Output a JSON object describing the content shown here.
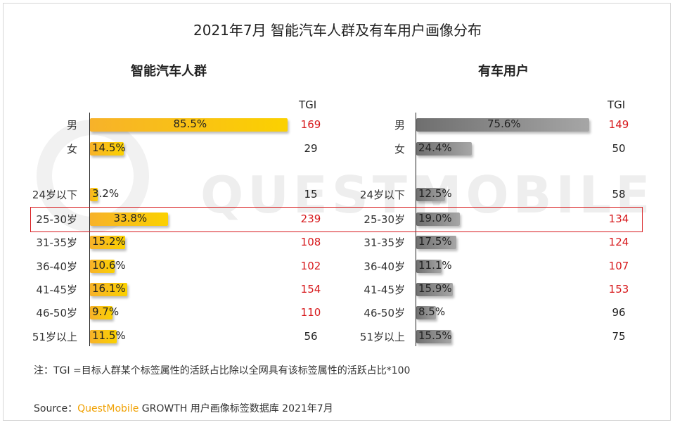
{
  "title": "2021年7月 智能汽车人群及有车用户画像分布",
  "tgi_header": "TGI",
  "note": "注：TGI =目标人群某个标签属性的活跃占比除以全网具有该标签属性的活跃占比*100",
  "source": {
    "prefix": "Source：",
    "brand": "QuestMobile",
    "text": " GROWTH 用户画像标签数据库 2021年7月"
  },
  "watermark": "QUESTMOBILE",
  "colors": {
    "smart_bar": "#f7b22a",
    "car_bar": "#808080",
    "tgi_red": "#d7191c",
    "highlight": "#d7191c"
  },
  "chart_data": [
    {
      "type": "bar",
      "orientation": "horizontal",
      "title": "智能汽车人群",
      "categories": [
        "男",
        "女",
        "24岁以下",
        "25-30岁",
        "31-35岁",
        "36-40岁",
        "41-45岁",
        "46-50岁",
        "51岁以上"
      ],
      "values": [
        85.5,
        14.5,
        3.2,
        33.8,
        15.2,
        10.6,
        16.1,
        9.7,
        11.5
      ],
      "labels": [
        "85.5%",
        "14.5%",
        "3.2%",
        "33.8%",
        "15.2%",
        "10.6%",
        "16.1%",
        "9.7%",
        "11.5%"
      ],
      "unit": "%",
      "tgi": [
        169,
        29,
        15,
        239,
        108,
        102,
        154,
        110,
        56
      ],
      "tgi_red": [
        true,
        false,
        false,
        true,
        true,
        true,
        true,
        true,
        false
      ]
    },
    {
      "type": "bar",
      "orientation": "horizontal",
      "title": "有车用户",
      "categories": [
        "男",
        "女",
        "24岁以下",
        "25-30岁",
        "31-35岁",
        "36-40岁",
        "41-45岁",
        "46-50岁",
        "51岁以上"
      ],
      "values": [
        75.6,
        24.4,
        12.5,
        19.0,
        17.5,
        11.1,
        15.9,
        8.5,
        15.5
      ],
      "labels": [
        "75.6%",
        "24.4%",
        "12.5%",
        "19.0%",
        "17.5%",
        "11.1%",
        "15.9%",
        "8.5%",
        "15.5%"
      ],
      "unit": "%",
      "tgi": [
        149,
        50,
        58,
        134,
        124,
        107,
        153,
        96,
        75
      ],
      "tgi_red": [
        true,
        false,
        false,
        true,
        true,
        true,
        true,
        false,
        false
      ]
    }
  ],
  "highlighted_category": "25-30岁"
}
